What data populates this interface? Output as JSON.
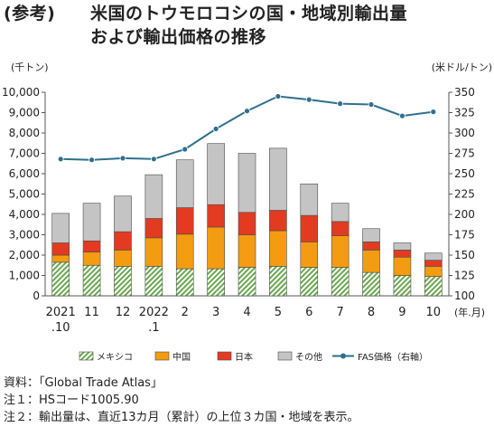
{
  "title": {
    "ref": "(参考)",
    "line1": "米国のトウモロコシの国・地域別輸出量",
    "line2": "および輸出価格の推移"
  },
  "footer": {
    "source": "資料：「Global Trade Atlas」",
    "note1": "注１：HSコード1005.90",
    "note2": "注２：輸出量は、直近13カ月（累計）の上位３カ国・地域を表示。"
  },
  "chart_data": {
    "type": "bar",
    "stacked": true,
    "categories": [
      "2021\n.10",
      "11",
      "12",
      "2022\n.1",
      "2",
      "3",
      "4",
      "5",
      "6",
      "7",
      "8",
      "9",
      "10"
    ],
    "xlabel": "(年.月)",
    "ylabel_left": "(千トン)",
    "ylabel_right": "(米ドル/トン)",
    "ylim_left": [
      0,
      10000
    ],
    "yticks_left": [
      0,
      1000,
      2000,
      3000,
      4000,
      5000,
      6000,
      7000,
      8000,
      9000,
      10000
    ],
    "ytick_labels_left": [
      "0",
      "1,000",
      "2,000",
      "3,000",
      "4,000",
      "5,000",
      "6,000",
      "7,000",
      "8,000",
      "9,000",
      "10,000"
    ],
    "ylim_right": [
      100,
      350
    ],
    "yticks_right": [
      100,
      125,
      150,
      175,
      200,
      225,
      250,
      275,
      300,
      325,
      350
    ],
    "grid": false,
    "legend_position": "bottom",
    "series": [
      {
        "name": "メキシコ",
        "color": "#6aa84f",
        "pattern": "hatch",
        "values": [
          1650,
          1500,
          1450,
          1450,
          1330,
          1330,
          1400,
          1450,
          1400,
          1400,
          1150,
          1000,
          950
        ]
      },
      {
        "name": "中国",
        "color": "#f39c12",
        "values": [
          350,
          650,
          800,
          1400,
          1700,
          2050,
          1600,
          1750,
          1250,
          1550,
          1100,
          900,
          500
        ]
      },
      {
        "name": "日本",
        "color": "#e23b22",
        "values": [
          600,
          550,
          900,
          950,
          1300,
          1100,
          1100,
          1000,
          1300,
          700,
          400,
          350,
          300
        ]
      },
      {
        "name": "その他",
        "color": "#c4c4c4",
        "values": [
          1450,
          1850,
          1750,
          2150,
          2350,
          3000,
          2900,
          3050,
          1550,
          900,
          650,
          350,
          350
        ]
      }
    ],
    "line_series": {
      "name": "FAS価格（右軸）",
      "color": "#2e6f8e",
      "axis": "right",
      "values": [
        268,
        267,
        269,
        268,
        280,
        305,
        327,
        345,
        341,
        336,
        335,
        321,
        326
      ]
    }
  }
}
